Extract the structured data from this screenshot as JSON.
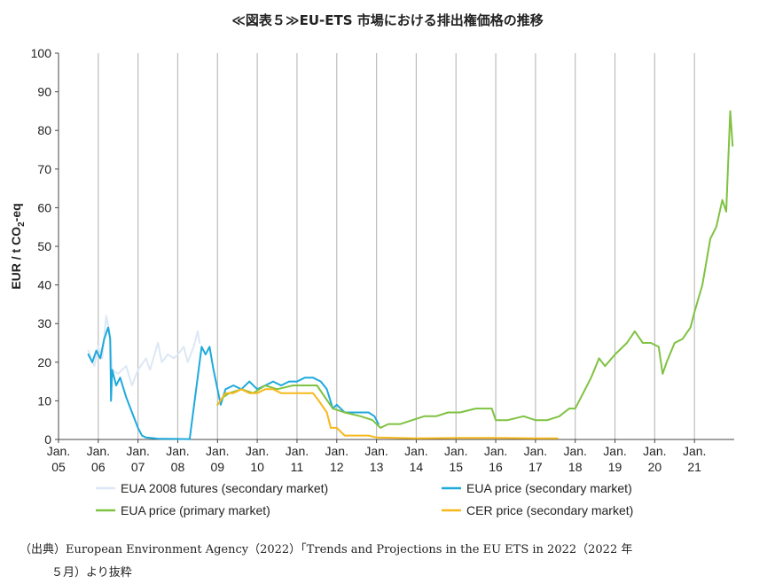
{
  "title": "≪図表５≫EU-ETS 市場における排出権価格の推移",
  "source": {
    "line1": "（出典）European Environment Agency（2022）「Trends and Projections in the EU ETS in 2022（2022 年",
    "line2": "５月）より抜粋"
  },
  "chart_data": {
    "type": "line",
    "ylabel": "EUR / t CO2-eq",
    "ylim": [
      0,
      100
    ],
    "yticks": [
      0,
      10,
      20,
      30,
      40,
      50,
      60,
      70,
      80,
      90,
      100
    ],
    "xlim": [
      2005,
      2022.0
    ],
    "xticks": [
      {
        "x": 2005,
        "line1": "Jan.",
        "line2": "05"
      },
      {
        "x": 2006,
        "line1": "Jan.",
        "line2": "06"
      },
      {
        "x": 2007,
        "line1": "Jan.",
        "line2": "07"
      },
      {
        "x": 2008,
        "line1": "Jan.",
        "line2": "08"
      },
      {
        "x": 2009,
        "line1": "Jan.",
        "line2": "09"
      },
      {
        "x": 2010,
        "line1": "Jan.",
        "line2": "10"
      },
      {
        "x": 2011,
        "line1": "Jan.",
        "line2": "11"
      },
      {
        "x": 2012,
        "line1": "Jan.",
        "line2": "12"
      },
      {
        "x": 2013,
        "line1": "Jan.",
        "line2": "13"
      },
      {
        "x": 2014,
        "line1": "Jan.",
        "line2": "14"
      },
      {
        "x": 2015,
        "line1": "Jan.",
        "line2": "15"
      },
      {
        "x": 2016,
        "line1": "Jan.",
        "line2": "16"
      },
      {
        "x": 2017,
        "line1": "Jan.",
        "line2": "17"
      },
      {
        "x": 2018,
        "line1": "Jan.",
        "line2": "18"
      },
      {
        "x": 2019,
        "line1": "Jan.",
        "line2": "19"
      },
      {
        "x": 2020,
        "line1": "Jan.",
        "line2": "20"
      },
      {
        "x": 2021,
        "line1": "Jan.",
        "line2": "21"
      }
    ],
    "vertical_grid": true,
    "legend_position": "bottom",
    "series": [
      {
        "name": "EUA 2008 futures (secondary market)",
        "color": "#dce8f5",
        "points": [
          [
            2005.75,
            23
          ],
          [
            2005.9,
            19
          ],
          [
            2006.0,
            24
          ],
          [
            2006.1,
            21
          ],
          [
            2006.2,
            32
          ],
          [
            2006.28,
            28
          ],
          [
            2006.35,
            18
          ],
          [
            2006.5,
            17
          ],
          [
            2006.7,
            19
          ],
          [
            2006.85,
            14
          ],
          [
            2007.0,
            18
          ],
          [
            2007.2,
            21
          ],
          [
            2007.3,
            18
          ],
          [
            2007.5,
            25
          ],
          [
            2007.6,
            20
          ],
          [
            2007.75,
            22
          ],
          [
            2007.9,
            21
          ],
          [
            2008.0,
            22
          ],
          [
            2008.15,
            24
          ],
          [
            2008.25,
            20
          ],
          [
            2008.4,
            24
          ],
          [
            2008.5,
            28
          ],
          [
            2008.55,
            25
          ]
        ]
      },
      {
        "name": "EUA price (secondary market)",
        "color": "#1ea9dc",
        "points": [
          [
            2005.75,
            22
          ],
          [
            2005.85,
            20
          ],
          [
            2005.95,
            23
          ],
          [
            2006.05,
            21
          ],
          [
            2006.15,
            26
          ],
          [
            2006.25,
            29
          ],
          [
            2006.3,
            26
          ],
          [
            2006.32,
            10
          ],
          [
            2006.35,
            18
          ],
          [
            2006.45,
            14
          ],
          [
            2006.55,
            16
          ],
          [
            2006.7,
            11
          ],
          [
            2006.85,
            7
          ],
          [
            2007.0,
            3
          ],
          [
            2007.1,
            1
          ],
          [
            2007.2,
            0.5
          ],
          [
            2007.5,
            0.2
          ],
          [
            2008.3,
            0.1
          ],
          [
            2008.6,
            24
          ],
          [
            2008.7,
            22
          ],
          [
            2008.8,
            24
          ],
          [
            2008.9,
            18
          ],
          [
            2009.0,
            13
          ],
          [
            2009.08,
            9
          ],
          [
            2009.2,
            13
          ],
          [
            2009.4,
            14
          ],
          [
            2009.6,
            13
          ],
          [
            2009.8,
            15
          ],
          [
            2010.0,
            13
          ],
          [
            2010.2,
            14
          ],
          [
            2010.4,
            15
          ],
          [
            2010.6,
            14
          ],
          [
            2010.8,
            15
          ],
          [
            2011.0,
            15
          ],
          [
            2011.2,
            16
          ],
          [
            2011.4,
            16
          ],
          [
            2011.6,
            15
          ],
          [
            2011.75,
            13
          ],
          [
            2011.9,
            8
          ],
          [
            2012.0,
            9
          ],
          [
            2012.2,
            7
          ],
          [
            2012.5,
            7
          ],
          [
            2012.8,
            7
          ],
          [
            2012.95,
            6
          ],
          [
            2013.05,
            4
          ]
        ]
      },
      {
        "name": "EUA price (primary market)",
        "color": "#7fc241",
        "points": [
          [
            2009.0,
            9
          ],
          [
            2009.15,
            11
          ],
          [
            2009.3,
            12
          ],
          [
            2009.6,
            13
          ],
          [
            2009.9,
            12
          ],
          [
            2010.2,
            14
          ],
          [
            2010.5,
            13
          ],
          [
            2010.9,
            14
          ],
          [
            2011.2,
            14
          ],
          [
            2011.5,
            14
          ],
          [
            2011.7,
            11
          ],
          [
            2011.9,
            8
          ],
          [
            2012.2,
            7
          ],
          [
            2012.6,
            6
          ],
          [
            2012.9,
            5
          ],
          [
            2013.1,
            3
          ],
          [
            2013.3,
            4
          ],
          [
            2013.6,
            4
          ],
          [
            2013.9,
            5
          ],
          [
            2014.2,
            6
          ],
          [
            2014.5,
            6
          ],
          [
            2014.8,
            7
          ],
          [
            2015.1,
            7
          ],
          [
            2015.5,
            8
          ],
          [
            2015.9,
            8
          ],
          [
            2016.0,
            5
          ],
          [
            2016.3,
            5
          ],
          [
            2016.7,
            6
          ],
          [
            2017.0,
            5
          ],
          [
            2017.3,
            5
          ],
          [
            2017.6,
            6
          ],
          [
            2017.85,
            8
          ],
          [
            2018.0,
            8
          ],
          [
            2018.2,
            12
          ],
          [
            2018.4,
            16
          ],
          [
            2018.6,
            21
          ],
          [
            2018.75,
            19
          ],
          [
            2019.0,
            22
          ],
          [
            2019.3,
            25
          ],
          [
            2019.5,
            28
          ],
          [
            2019.7,
            25
          ],
          [
            2019.9,
            25
          ],
          [
            2020.1,
            24
          ],
          [
            2020.2,
            17
          ],
          [
            2020.3,
            20
          ],
          [
            2020.5,
            25
          ],
          [
            2020.7,
            26
          ],
          [
            2020.9,
            29
          ],
          [
            2021.0,
            33
          ],
          [
            2021.2,
            40
          ],
          [
            2021.4,
            52
          ],
          [
            2021.55,
            55
          ],
          [
            2021.7,
            62
          ],
          [
            2021.8,
            59
          ],
          [
            2021.9,
            85
          ],
          [
            2021.96,
            76
          ]
        ]
      },
      {
        "name": "CER price (secondary market)",
        "color": "#f7b81c",
        "points": [
          [
            2009.0,
            9
          ],
          [
            2009.2,
            12
          ],
          [
            2009.4,
            12
          ],
          [
            2009.6,
            13
          ],
          [
            2009.8,
            12
          ],
          [
            2010.0,
            12
          ],
          [
            2010.2,
            13
          ],
          [
            2010.4,
            13
          ],
          [
            2010.6,
            12
          ],
          [
            2010.8,
            12
          ],
          [
            2011.0,
            12
          ],
          [
            2011.2,
            12
          ],
          [
            2011.4,
            12
          ],
          [
            2011.55,
            10
          ],
          [
            2011.75,
            7
          ],
          [
            2011.85,
            3
          ],
          [
            2012.0,
            3
          ],
          [
            2012.2,
            1
          ],
          [
            2012.5,
            1
          ],
          [
            2012.8,
            1
          ],
          [
            2013.0,
            0.5
          ],
          [
            2013.5,
            0.4
          ],
          [
            2014.0,
            0.3
          ],
          [
            2015.0,
            0.4
          ],
          [
            2016.0,
            0.4
          ],
          [
            2017.0,
            0.3
          ],
          [
            2017.55,
            0.3
          ]
        ]
      }
    ]
  }
}
